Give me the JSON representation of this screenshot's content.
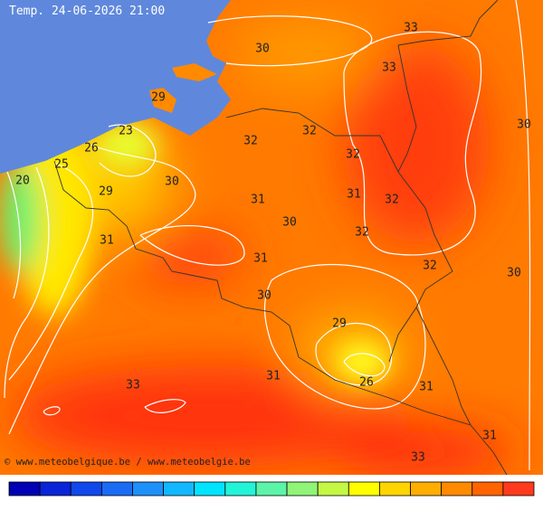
{
  "title": "Temp. 24-06-2026 21:00",
  "contour_labels": [
    33,
    30,
    33,
    29,
    30,
    23,
    32,
    32,
    26,
    32,
    25,
    20,
    30,
    29,
    31,
    32,
    31,
    30,
    32,
    31,
    31,
    32,
    30,
    30,
    29,
    26,
    31,
    31,
    33,
    31,
    33
  ],
  "copyright": "© www.meteobelgique.be / www.meteobelgie.be",
  "colorbar_colors": [
    "#0000b4",
    "#0a24d8",
    "#1048ec",
    "#1a6cf4",
    "#1e90fa",
    "#12b8ff",
    "#00e4ff",
    "#22f4d8",
    "#5cf4a8",
    "#90f478",
    "#c4f844",
    "#ffff00",
    "#ffd400",
    "#ffae00",
    "#ff8a00",
    "#ff6400",
    "#ff3a1e"
  ]
}
